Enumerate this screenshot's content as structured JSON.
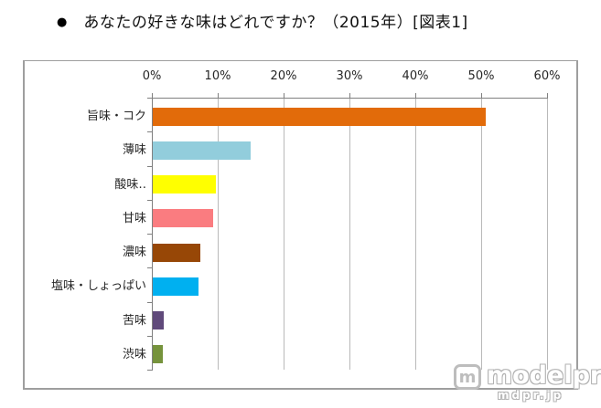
{
  "header": {
    "bullet": "●",
    "title": "あなたの好きな味はどれですか？（2015年）[図表1]"
  },
  "chart_data": {
    "type": "bar",
    "orientation": "horizontal",
    "title": "あなたの好きな味はどれですか？（2015年）",
    "categories": [
      "旨味・コク",
      "薄味",
      "酸味‥",
      "甘味",
      "濃味",
      "塩味・しょっぱい",
      "苦味",
      "渋味"
    ],
    "values": [
      50.5,
      14.8,
      9.6,
      9.2,
      7.2,
      6.9,
      1.6,
      1.5
    ],
    "bar_colors": [
      "#E26B0A",
      "#92CDDC",
      "#FFFF00",
      "#FA7C80",
      "#974706",
      "#00B0F0",
      "#604A7B",
      "#76933C"
    ],
    "x_ticks": [
      "0%",
      "10%",
      "20%",
      "30%",
      "40%",
      "50%",
      "60%"
    ],
    "xlim": [
      0,
      60
    ],
    "xlabel": "",
    "ylabel": "",
    "grid": true,
    "value_axis_position": "top",
    "legend_position": "none"
  },
  "watermark": {
    "logo_letter": "m",
    "brand": "modelpress",
    "domain": "mdpr.jp"
  },
  "colors": {
    "grid": "#b9b9b9",
    "axis": "#808080",
    "frame_border": "#9e9e9e",
    "title_text": "#111111",
    "tick_text": "#262626",
    "background": "#ffffff"
  }
}
